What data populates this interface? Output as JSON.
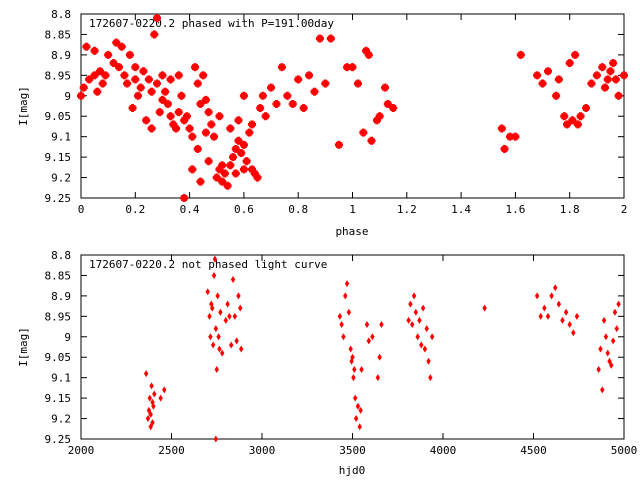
{
  "colors": {
    "points": "#ff0000",
    "axes": "#000000",
    "background": "#ffffff"
  },
  "chart_data": [
    {
      "type": "scatter",
      "title": "172607-0220.2 phased with P=191.00day",
      "xlabel": "phase",
      "ylabel": "I[mag]",
      "xlim": [
        0,
        2
      ],
      "ylim": [
        8.8,
        9.25
      ],
      "y_inverted": true,
      "xticks": [
        "0",
        "0.2",
        "0.4",
        "0.6",
        "0.8",
        "1",
        "1.2",
        "1.4",
        "1.6",
        "1.8",
        "2"
      ],
      "yticks": [
        "8.8",
        "8.85",
        "8.9",
        "8.95",
        "9",
        "9.05",
        "9.1",
        "9.15",
        "9.2",
        "9.25"
      ],
      "grid": false,
      "marker": "filled-square",
      "points": [
        [
          0.0,
          9.0
        ],
        [
          0.01,
          8.98
        ],
        [
          0.02,
          8.88
        ],
        [
          0.03,
          8.96
        ],
        [
          0.05,
          8.95
        ],
        [
          0.06,
          8.99
        ],
        [
          0.07,
          8.94
        ],
        [
          0.08,
          8.97
        ],
        [
          0.1,
          8.9
        ],
        [
          0.12,
          8.92
        ],
        [
          0.13,
          8.87
        ],
        [
          0.15,
          8.88
        ],
        [
          0.16,
          8.95
        ],
        [
          0.18,
          8.9
        ],
        [
          0.2,
          8.93
        ],
        [
          0.2,
          8.96
        ],
        [
          0.22,
          8.98
        ],
        [
          0.23,
          8.94
        ],
        [
          0.25,
          8.96
        ],
        [
          0.26,
          8.99
        ],
        [
          0.27,
          8.85
        ],
        [
          0.28,
          8.81
        ],
        [
          0.28,
          8.97
        ],
        [
          0.3,
          8.95
        ],
        [
          0.3,
          9.01
        ],
        [
          0.31,
          8.99
        ],
        [
          0.32,
          9.02
        ],
        [
          0.33,
          9.05
        ],
        [
          0.34,
          9.07
        ],
        [
          0.35,
          9.08
        ],
        [
          0.36,
          8.95
        ],
        [
          0.37,
          9.0
        ],
        [
          0.38,
          9.06
        ],
        [
          0.39,
          9.05
        ],
        [
          0.4,
          9.08
        ],
        [
          0.41,
          9.1
        ],
        [
          0.42,
          8.93
        ],
        [
          0.43,
          8.97
        ],
        [
          0.44,
          9.02
        ],
        [
          0.45,
          8.95
        ],
        [
          0.46,
          9.01
        ],
        [
          0.47,
          9.04
        ],
        [
          0.48,
          9.07
        ],
        [
          0.49,
          9.1
        ],
        [
          0.5,
          9.2
        ],
        [
          0.51,
          9.18
        ],
        [
          0.52,
          9.21
        ],
        [
          0.53,
          9.19
        ],
        [
          0.54,
          9.22
        ],
        [
          0.55,
          9.17
        ],
        [
          0.56,
          9.15
        ],
        [
          0.57,
          9.13
        ],
        [
          0.58,
          9.11
        ],
        [
          0.59,
          9.14
        ],
        [
          0.6,
          9.12
        ],
        [
          0.61,
          9.16
        ],
        [
          0.62,
          9.09
        ],
        [
          0.63,
          9.07
        ],
        [
          0.64,
          9.19
        ],
        [
          0.65,
          9.2
        ],
        [
          0.66,
          9.03
        ],
        [
          0.67,
          9.0
        ],
        [
          0.68,
          9.05
        ],
        [
          0.7,
          8.98
        ],
        [
          0.72,
          9.02
        ],
        [
          0.74,
          8.93
        ],
        [
          0.76,
          9.0
        ],
        [
          0.78,
          9.02
        ],
        [
          0.8,
          8.96
        ],
        [
          0.82,
          9.03
        ],
        [
          0.84,
          8.95
        ],
        [
          0.86,
          8.99
        ],
        [
          0.88,
          8.86
        ],
        [
          0.9,
          8.97
        ],
        [
          0.92,
          8.86
        ],
        [
          0.95,
          9.12
        ],
        [
          0.98,
          8.93
        ],
        [
          1.0,
          8.93
        ],
        [
          1.02,
          8.97
        ],
        [
          1.04,
          9.09
        ],
        [
          1.05,
          8.89
        ],
        [
          1.06,
          8.9
        ],
        [
          1.07,
          9.11
        ],
        [
          1.09,
          9.06
        ],
        [
          1.1,
          9.05
        ],
        [
          1.12,
          8.98
        ],
        [
          1.13,
          9.02
        ],
        [
          1.15,
          9.03
        ],
        [
          0.05,
          8.89
        ],
        [
          0.09,
          8.95
        ],
        [
          0.14,
          8.93
        ],
        [
          0.17,
          8.97
        ],
        [
          0.19,
          9.03
        ],
        [
          0.21,
          9.0
        ],
        [
          0.24,
          9.06
        ],
        [
          0.26,
          9.08
        ],
        [
          0.29,
          9.04
        ],
        [
          0.33,
          8.96
        ],
        [
          0.36,
          9.04
        ],
        [
          0.38,
          9.25
        ],
        [
          0.41,
          9.18
        ],
        [
          0.44,
          9.21
        ],
        [
          0.47,
          9.16
        ],
        [
          0.52,
          9.17
        ],
        [
          0.55,
          9.08
        ],
        [
          0.57,
          9.19
        ],
        [
          0.6,
          9.18
        ],
        [
          0.63,
          9.18
        ],
        [
          0.43,
          9.13
        ],
        [
          0.46,
          9.09
        ],
        [
          0.51,
          9.05
        ],
        [
          0.58,
          9.06
        ],
        [
          0.6,
          9.0
        ],
        [
          1.55,
          9.08
        ],
        [
          1.56,
          9.13
        ],
        [
          1.58,
          9.1
        ],
        [
          1.6,
          9.1
        ],
        [
          1.62,
          8.9
        ],
        [
          1.68,
          8.95
        ],
        [
          1.7,
          8.97
        ],
        [
          1.72,
          8.94
        ],
        [
          1.75,
          9.0
        ],
        [
          1.76,
          8.96
        ],
        [
          1.78,
          9.05
        ],
        [
          1.79,
          9.07
        ],
        [
          1.8,
          8.92
        ],
        [
          1.81,
          9.06
        ],
        [
          1.82,
          8.9
        ],
        [
          1.83,
          9.07
        ],
        [
          1.84,
          9.05
        ],
        [
          1.86,
          9.03
        ],
        [
          1.88,
          8.97
        ],
        [
          1.9,
          8.95
        ],
        [
          1.92,
          8.93
        ],
        [
          1.94,
          8.96
        ],
        [
          1.96,
          8.92
        ],
        [
          1.98,
          9.0
        ],
        [
          2.0,
          8.95
        ],
        [
          1.93,
          8.98
        ],
        [
          1.95,
          8.94
        ],
        [
          1.97,
          8.96
        ]
      ]
    },
    {
      "type": "scatter",
      "title": "172607-0220.2 not phased light curve",
      "xlabel": "hjd0",
      "ylabel": "I[mag]",
      "xlim": [
        2000,
        5000
      ],
      "ylim": [
        8.8,
        9.25
      ],
      "y_inverted": true,
      "xticks": [
        "2000",
        "2500",
        "3000",
        "3500",
        "4000",
        "4500",
        "5000"
      ],
      "yticks": [
        "8.8",
        "8.85",
        "8.9",
        "8.95",
        "9",
        "9.05",
        "9.1",
        "9.15",
        "9.2",
        "9.25"
      ],
      "grid": false,
      "marker": "filled-diamond",
      "points": [
        [
          2360,
          9.09
        ],
        [
          2370,
          9.2
        ],
        [
          2375,
          9.18
        ],
        [
          2380,
          9.15
        ],
        [
          2385,
          9.19
        ],
        [
          2390,
          9.12
        ],
        [
          2395,
          9.21
        ],
        [
          2400,
          9.17
        ],
        [
          2405,
          9.14
        ],
        [
          2395,
          9.16
        ],
        [
          2385,
          9.22
        ],
        [
          2440,
          9.15
        ],
        [
          2460,
          9.13
        ],
        [
          2700,
          8.89
        ],
        [
          2710,
          8.95
        ],
        [
          2715,
          9.0
        ],
        [
          2720,
          8.92
        ],
        [
          2725,
          8.93
        ],
        [
          2730,
          9.02
        ],
        [
          2735,
          8.85
        ],
        [
          2740,
          8.81
        ],
        [
          2745,
          8.98
        ],
        [
          2750,
          9.08
        ],
        [
          2755,
          8.9
        ],
        [
          2760,
          9.0
        ],
        [
          2765,
          9.03
        ],
        [
          2770,
          8.94
        ],
        [
          2780,
          9.04
        ],
        [
          2800,
          8.96
        ],
        [
          2810,
          8.92
        ],
        [
          2820,
          8.95
        ],
        [
          2830,
          9.02
        ],
        [
          2840,
          8.86
        ],
        [
          2850,
          8.95
        ],
        [
          2860,
          9.01
        ],
        [
          2870,
          8.9
        ],
        [
          2880,
          8.93
        ],
        [
          2885,
          9.03
        ],
        [
          2745,
          9.25
        ],
        [
          3430,
          8.95
        ],
        [
          3440,
          8.97
        ],
        [
          3450,
          9.0
        ],
        [
          3460,
          8.9
        ],
        [
          3470,
          8.87
        ],
        [
          3480,
          8.94
        ],
        [
          3490,
          9.03
        ],
        [
          3495,
          9.06
        ],
        [
          3500,
          9.05
        ],
        [
          3505,
          9.1
        ],
        [
          3510,
          9.08
        ],
        [
          3515,
          9.15
        ],
        [
          3520,
          9.2
        ],
        [
          3530,
          9.17
        ],
        [
          3540,
          9.22
        ],
        [
          3545,
          9.18
        ],
        [
          3550,
          9.08
        ],
        [
          3580,
          8.97
        ],
        [
          3590,
          9.01
        ],
        [
          3610,
          9.0
        ],
        [
          3640,
          9.1
        ],
        [
          3650,
          9.05
        ],
        [
          3660,
          8.97
        ],
        [
          3810,
          8.96
        ],
        [
          3820,
          8.92
        ],
        [
          3830,
          8.97
        ],
        [
          3840,
          8.9
        ],
        [
          3850,
          8.94
        ],
        [
          3860,
          9.0
        ],
        [
          3870,
          8.96
        ],
        [
          3880,
          9.02
        ],
        [
          3890,
          8.93
        ],
        [
          3900,
          9.03
        ],
        [
          3910,
          8.98
        ],
        [
          3920,
          9.06
        ],
        [
          3930,
          9.1
        ],
        [
          3940,
          9.0
        ],
        [
          4230,
          8.93
        ],
        [
          4520,
          8.9
        ],
        [
          4540,
          8.95
        ],
        [
          4560,
          8.93
        ],
        [
          4580,
          8.95
        ],
        [
          4600,
          8.9
        ],
        [
          4620,
          8.88
        ],
        [
          4640,
          8.92
        ],
        [
          4660,
          8.96
        ],
        [
          4680,
          8.94
        ],
        [
          4700,
          8.97
        ],
        [
          4720,
          8.99
        ],
        [
          4740,
          8.95
        ],
        [
          4860,
          9.08
        ],
        [
          4870,
          9.03
        ],
        [
          4880,
          9.13
        ],
        [
          4890,
          8.96
        ],
        [
          4900,
          9.0
        ],
        [
          4910,
          9.04
        ],
        [
          4920,
          9.06
        ],
        [
          4930,
          9.07
        ],
        [
          4940,
          9.01
        ],
        [
          4950,
          8.94
        ],
        [
          4960,
          8.98
        ],
        [
          4970,
          8.92
        ]
      ]
    }
  ]
}
